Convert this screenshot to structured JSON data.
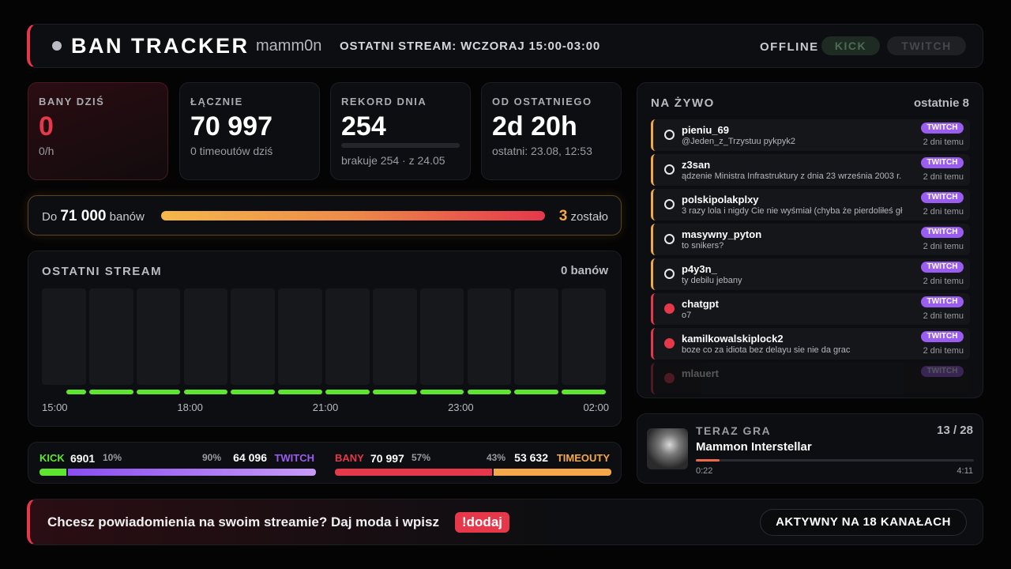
{
  "header": {
    "title": "BAN TRACKER",
    "channel": "mamm0n",
    "last_stream": "OSTATNI STREAM: WCZORAJ 15:00-03:00",
    "status": "OFFLINE",
    "platforms": [
      "KICK",
      "TWITCH"
    ]
  },
  "stats": [
    {
      "label": "BANY DZIŚ",
      "value": "0",
      "sub": "0/h"
    },
    {
      "label": "ŁĄCZNIE",
      "value": "70 997",
      "sub": "0 timeoutów dziś"
    },
    {
      "label": "REKORD DNIA",
      "value": "254",
      "sub": "brakuje 254 · z 24.05"
    },
    {
      "label": "OD OSTATNIEGO",
      "value": "2d 20h",
      "sub": "ostatni: 23.08, 12:53"
    }
  ],
  "goal": {
    "prefix": "Do",
    "target": "71 000",
    "unit": "banów",
    "remaining": "3",
    "remaining_label": "zostało"
  },
  "stream": {
    "title": "OSTATNI STREAM",
    "total": "0 banów",
    "values": [
      0,
      0,
      0,
      0,
      0,
      0,
      0,
      0,
      0,
      0,
      0,
      0
    ],
    "times": [
      "15:00",
      "18:00",
      "21:00",
      "23:00",
      "02:00"
    ]
  },
  "split": {
    "kick": {
      "label": "KICK",
      "count": "6901",
      "share": {
        "value": 10,
        "label": "10%"
      }
    },
    "twitch": {
      "label": "TWITCH",
      "count": "64 096",
      "share": {
        "value": 90,
        "label": "90%"
      }
    },
    "bans": {
      "label": "BANY",
      "count": "70 997",
      "share": {
        "value": 57,
        "label": "57%"
      }
    },
    "timeouts": {
      "label": "TIMEOUTY",
      "count": "53 632",
      "share": {
        "value": 43,
        "label": "43%"
      }
    }
  },
  "live": {
    "title": "NA ŻYWO",
    "count_label": "ostatnie 8",
    "items": [
      {
        "user": "pieniu_69",
        "message": "@Jeden_z_Trzystuu pykpyk2",
        "platform": "TWITCH",
        "time": "2 dni temu",
        "kind": "timeout"
      },
      {
        "user": "z3san",
        "message": "ądzenie Ministra Infrastruktury z dnia 23 września 2003 r.",
        "platform": "TWITCH",
        "time": "2 dni temu",
        "kind": "timeout"
      },
      {
        "user": "polskipolakplxy",
        "message": "3 razy lola i nigdy Cie nie wyśmiał (chyba że pierdoliłeś gł",
        "platform": "TWITCH",
        "time": "2 dni temu",
        "kind": "timeout"
      },
      {
        "user": "masywny_pyton",
        "message": "to snikers?",
        "platform": "TWITCH",
        "time": "2 dni temu",
        "kind": "timeout"
      },
      {
        "user": "p4y3n_",
        "message": "ty debilu jebany",
        "platform": "TWITCH",
        "time": "2 dni temu",
        "kind": "timeout"
      },
      {
        "user": "chatgpt",
        "message": "o7",
        "platform": "TWITCH",
        "time": "2 dni temu",
        "kind": "ban"
      },
      {
        "user": "kamilkowalskiplock2",
        "message": "boze co za idiota bez delayu sie nie da grac",
        "platform": "TWITCH",
        "time": "2 dni temu",
        "kind": "ban"
      },
      {
        "user": "mlauert",
        "platform": "TWITCH",
        "kind": "ban"
      }
    ]
  },
  "now_playing": {
    "label": "TERAZ GRA",
    "position": "13 / 28",
    "track": "Mammon Interstellar",
    "elapsed": "0:22",
    "duration": "4:11"
  },
  "footer": {
    "text": "Chcesz powiadomienia na swoim streamie? Daj moda i wpisz",
    "command": "!dodaj",
    "status": "AKTYWNY NA 18 KANAŁACH"
  }
}
